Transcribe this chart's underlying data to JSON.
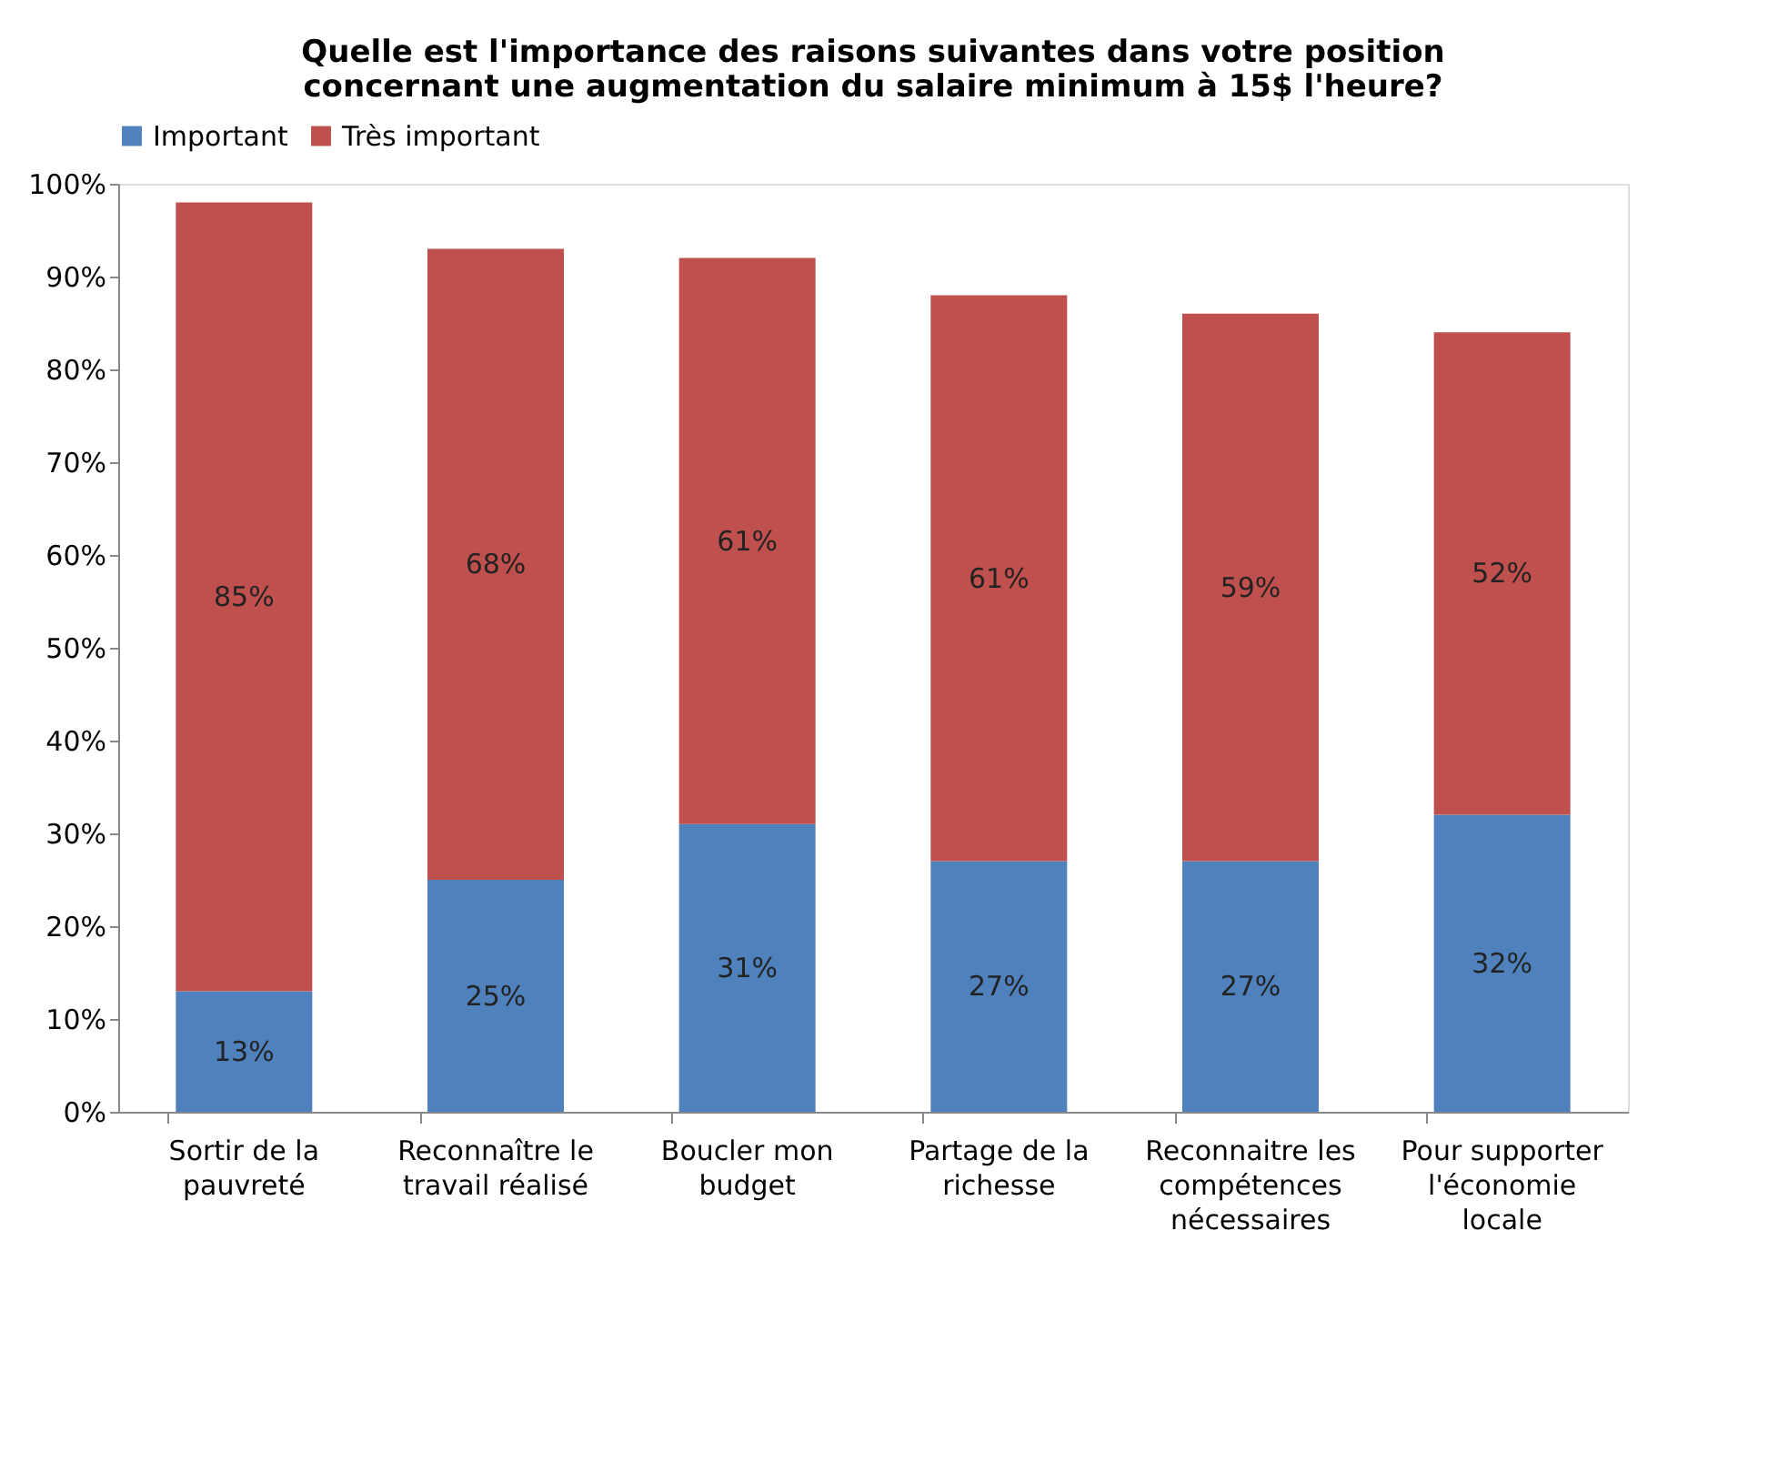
{
  "chart_data": {
    "type": "bar",
    "stacked": true,
    "title": "Quelle est l'importance des raisons suivantes dans votre position concernant une augmentation du salaire minimum à 15$ l'heure?",
    "categories": [
      "Sortir de la pauvreté",
      "Reconnaître le travail réalisé",
      "Boucler mon budget",
      "Partage de la richesse",
      "Reconnaitre les compétences nécessaires",
      "Pour supporter l'économie locale"
    ],
    "series": [
      {
        "name": "Important",
        "color": "#4f81bd",
        "values": [
          13,
          25,
          31,
          27,
          27,
          32
        ],
        "value_labels": [
          "13%",
          "25%",
          "31%",
          "27%",
          "27%",
          "32%"
        ]
      },
      {
        "name": "Très important",
        "color": "#c0504d",
        "values": [
          85,
          68,
          61,
          61,
          59,
          52
        ],
        "value_labels": [
          "85%",
          "68%",
          "61%",
          "61%",
          "59%",
          "52%"
        ]
      }
    ],
    "ylim": [
      0,
      100
    ],
    "yticks": [
      {
        "value": 0,
        "label": "0%"
      },
      {
        "value": 10,
        "label": "10%"
      },
      {
        "value": 20,
        "label": "20%"
      },
      {
        "value": 30,
        "label": "30%"
      },
      {
        "value": 40,
        "label": "40%"
      },
      {
        "value": 50,
        "label": "50%"
      },
      {
        "value": 60,
        "label": "60%"
      },
      {
        "value": 70,
        "label": "70%"
      },
      {
        "value": 80,
        "label": "80%"
      },
      {
        "value": 90,
        "label": "90%"
      },
      {
        "value": 100,
        "label": "100%"
      }
    ],
    "legend": "top",
    "grid": false
  }
}
